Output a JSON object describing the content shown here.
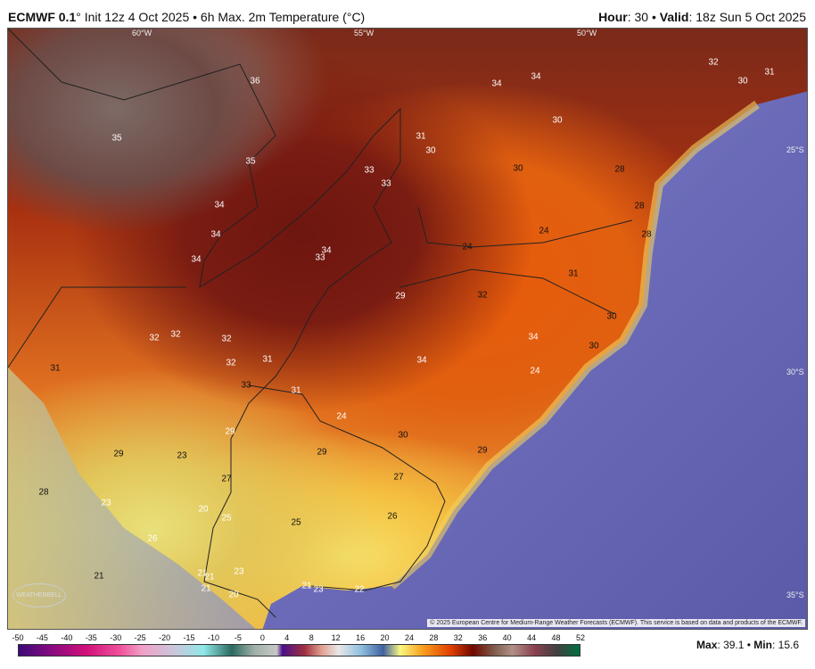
{
  "header": {
    "model": "ECMWF 0.1",
    "model_suffix": "° Init 12z 4 Oct 2025 • 6h Max. 2m Temperature (°C)",
    "hour_label": "Hour",
    "hour": ": 30 • ",
    "valid_label": "Valid",
    "valid": ": 18z Sun 5 Oct 2025"
  },
  "grid_labels": {
    "lon": [
      "60°W",
      "55°W",
      "50°W"
    ],
    "lat": [
      "25°S",
      "30°S",
      "35°S"
    ]
  },
  "temperature_labels": [
    "36",
    "35",
    "35",
    "34",
    "34",
    "34",
    "34",
    "33",
    "33",
    "33",
    "31",
    "30",
    "34",
    "34",
    "32",
    "31",
    "30",
    "30",
    "30",
    "28",
    "28",
    "24",
    "28",
    "24",
    "31",
    "29",
    "32",
    "30",
    "34",
    "30",
    "24",
    "34",
    "32",
    "32",
    "32",
    "32",
    "31",
    "33",
    "31",
    "31",
    "24",
    "30",
    "29",
    "29",
    "29",
    "29",
    "23",
    "27",
    "27",
    "28",
    "23",
    "20",
    "25",
    "25",
    "26",
    "26",
    "21",
    "23",
    "21",
    "21",
    "21",
    "20",
    "21",
    "23",
    "22",
    "21"
  ],
  "copyright": "© 2025 European Centre for Medium-Range Weather Forecasts (ECMWF). This service is based on data and products of the ECMWF.",
  "logo": "WEATHERBELL",
  "colorbar": {
    "ticks": [
      "-50",
      "-45",
      "-40",
      "-35",
      "-30",
      "-25",
      "-20",
      "-15",
      "-10",
      "-5",
      "0",
      "4",
      "8",
      "12",
      "16",
      "20",
      "24",
      "28",
      "32",
      "36",
      "40",
      "44",
      "48",
      "52"
    ]
  },
  "stats": {
    "max_label": "Max",
    "max": "39.1",
    "sep": " • ",
    "min_label": "Min",
    "min": "15.6"
  }
}
